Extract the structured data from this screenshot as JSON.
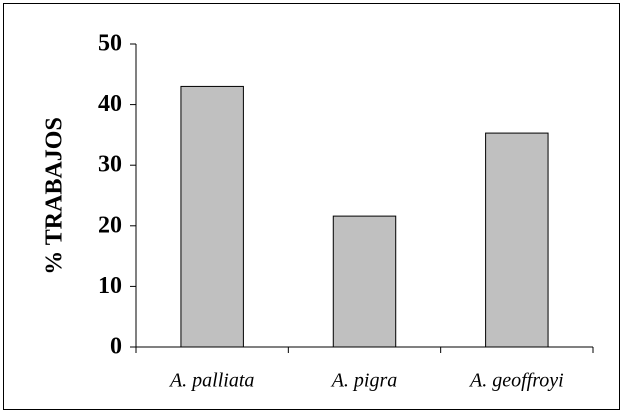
{
  "chart_data": {
    "type": "bar",
    "y_label": "% TRABAJOS",
    "categories": [
      "A. palliata",
      "A. pigra",
      "A. geoffroyi"
    ],
    "values": [
      43,
      21.6,
      35.3
    ],
    "color": "#c0c0c0",
    "ylim": [
      0,
      50
    ],
    "yticks": [
      0,
      10,
      20,
      30,
      40,
      50
    ],
    "grid": false
  }
}
